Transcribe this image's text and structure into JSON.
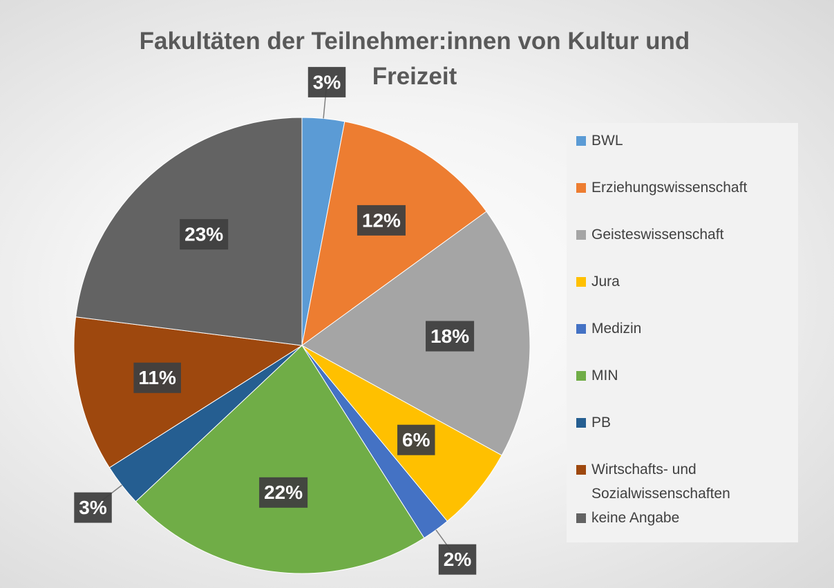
{
  "chart_data": {
    "type": "pie",
    "title": "Fakultäten der Teilnehmer:innen von Kultur und Freizeit",
    "categories": [
      "BWL",
      "Erziehungswissenschaft",
      "Geisteswissenschaft",
      "Jura",
      "Medizin",
      "MIN",
      "PB",
      "Wirtschafts- und Sozialwissenschaften",
      "keine Angabe"
    ],
    "values": [
      3,
      12,
      18,
      6,
      2,
      22,
      3,
      11,
      23
    ],
    "value_labels": [
      "3%",
      "12%",
      "18%",
      "6%",
      "2%",
      "22%",
      "3%",
      "11%",
      "23%"
    ],
    "colors": [
      "#5b9bd5",
      "#ed7d31",
      "#a5a5a5",
      "#ffc000",
      "#4472c4",
      "#70ad47",
      "#255e91",
      "#9e480e",
      "#636363"
    ],
    "legend": "right"
  }
}
